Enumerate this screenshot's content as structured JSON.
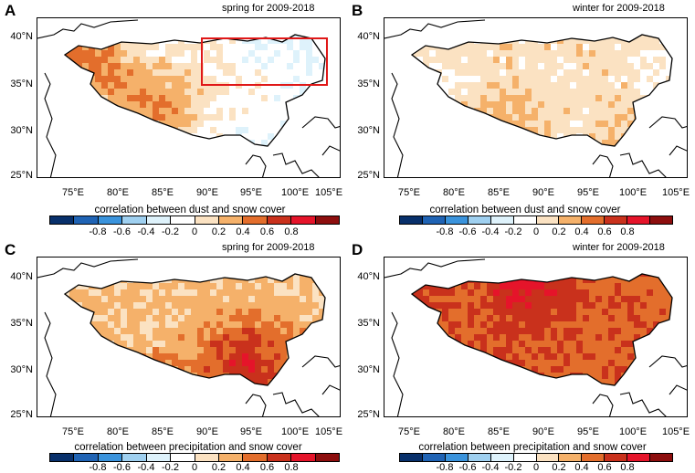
{
  "colors": [
    "#08306b",
    "#1f63b4",
    "#3a93dc",
    "#9fd0f0",
    "#def2fb",
    "#ffffff",
    "#fbe2c2",
    "#f5b16a",
    "#e36e2c",
    "#c9311c",
    "#e5142a",
    "#8d0e0e"
  ],
  "colorbar_ticks": [
    "-0.8",
    "-0.6",
    "-0.4",
    "-0.2",
    "0",
    "0.2",
    "0.4",
    "0.6",
    "0.8"
  ],
  "x_ticks": [
    "75°E",
    "80°E",
    "85°E",
    "90°E",
    "95°E",
    "100°E",
    "105°E"
  ],
  "y_ticks": [
    "40°N",
    "35°N",
    "30°N",
    "25°N"
  ],
  "panels": [
    {
      "letter": "A",
      "subtitle": "spring for 2009-2018",
      "colorbar_title": "correlation between dust and snow cover",
      "highlight_box": true
    },
    {
      "letter": "B",
      "subtitle": "winter for 2009-2018",
      "colorbar_title": "correlation between dust and snow cover",
      "highlight_box": false
    },
    {
      "letter": "C",
      "subtitle": "spring for 2009-2018",
      "colorbar_title": "correlation between precipitation and snow cover",
      "highlight_box": false
    },
    {
      "letter": "D",
      "subtitle": "winter for 2009-2018",
      "colorbar_title": "correlation between precipitation and snow cover",
      "highlight_box": false
    }
  ]
}
